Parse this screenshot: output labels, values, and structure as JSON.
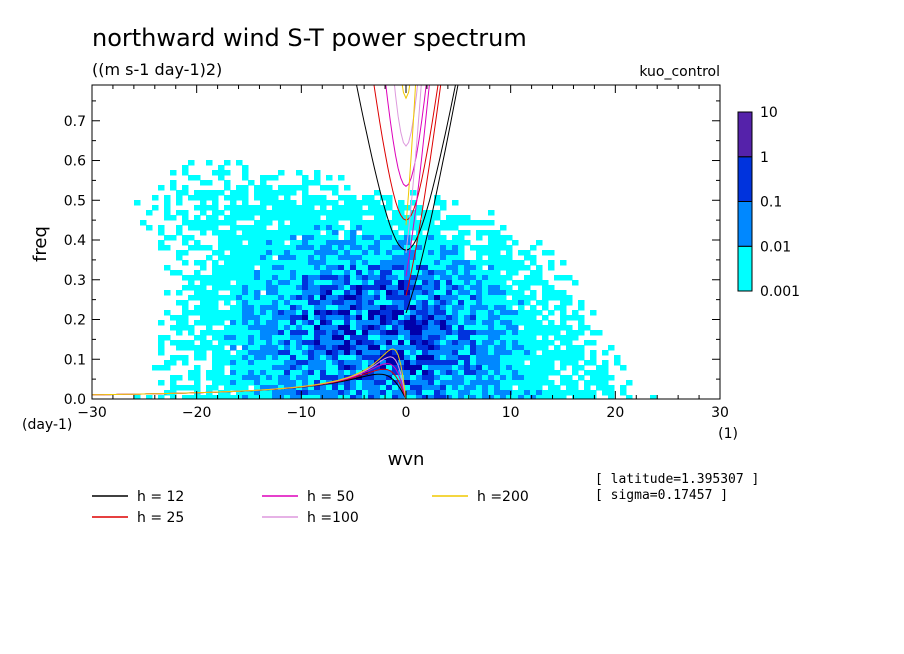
{
  "chart_data": {
    "type": "heatmap",
    "title": "northward wind S-T power spectrum",
    "subtitle": "((m s-1 day-1)2)",
    "experiment_label": "kuo_control",
    "xlabel": "wvn",
    "ylabel": "freq",
    "x_unit_label": "(1)",
    "y_unit_label": "(day-1)",
    "xlim": [
      -30,
      30
    ],
    "ylim": [
      0,
      0.79
    ],
    "x_ticks": [
      -30,
      -20,
      -10,
      0,
      10,
      20,
      30
    ],
    "x_tick_labels": [
      "−30",
      "−20",
      "−10",
      "0",
      "10",
      "20",
      "30"
    ],
    "y_ticks": [
      0.0,
      0.1,
      0.2,
      0.3,
      0.4,
      0.5,
      0.6,
      0.7
    ],
    "y_tick_labels": [
      "0.0",
      "0.1",
      "0.2",
      "0.3",
      "0.4",
      "0.5",
      "0.6",
      "0.7"
    ],
    "colorbar": {
      "levels": [
        "0.001",
        "0.01",
        "0.1",
        "1",
        "10"
      ],
      "colors": [
        "#00ffff",
        "#0088ff",
        "#0033dd",
        "#0000aa",
        "#5522aa"
      ]
    },
    "dispersion_curves": [
      {
        "label": "h = 12",
        "h": 12,
        "color": "#000000"
      },
      {
        "label": "h = 25",
        "h": 25,
        "color": "#dd0000"
      },
      {
        "label": "h = 50",
        "h": 50,
        "color": "#dd00bb"
      },
      {
        "label": "h =100",
        "h": 100,
        "color": "#dd99dd"
      },
      {
        "label": "h =200",
        "h": 200,
        "color": "#f0c800"
      }
    ],
    "annotations": [
      "[ latitude=1.395307 ]",
      "[ sigma=0.17457 ]"
    ]
  }
}
